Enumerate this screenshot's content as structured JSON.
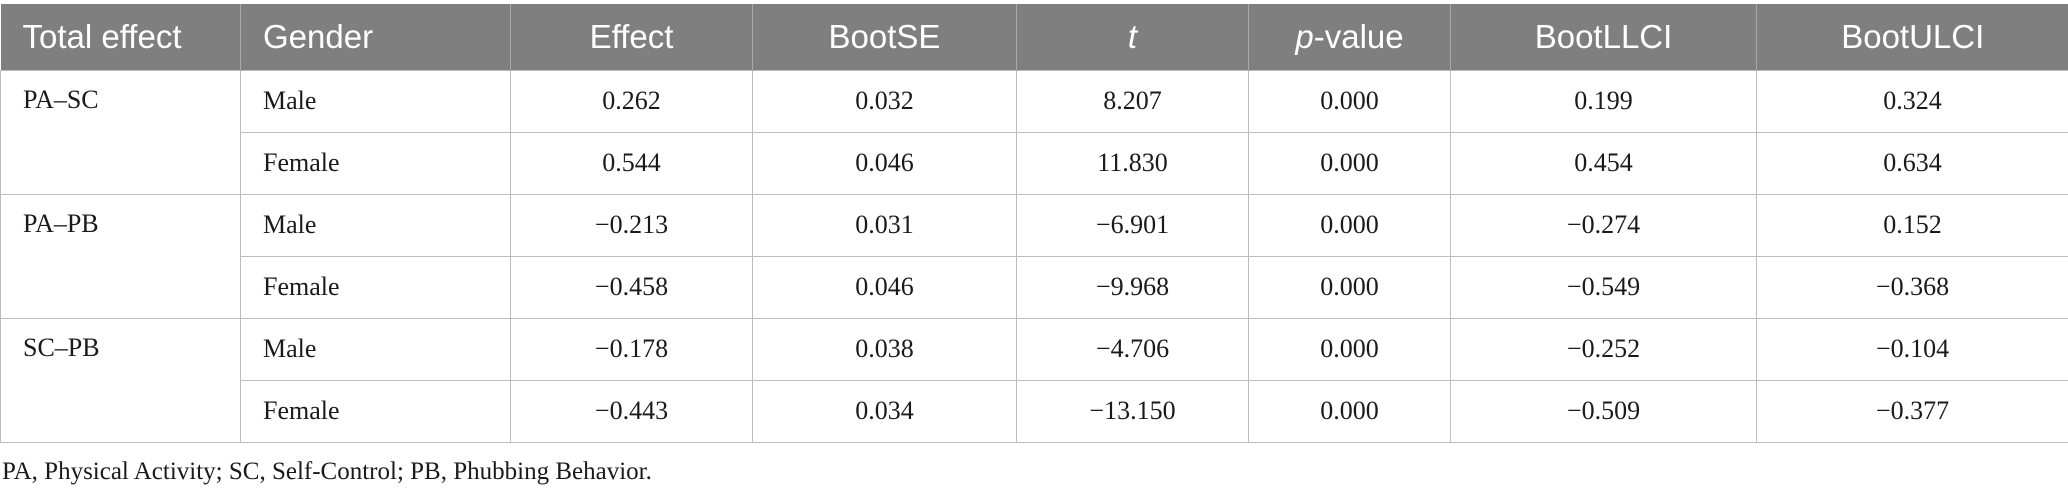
{
  "table": {
    "headers": {
      "total_effect": "Total effect",
      "gender": "Gender",
      "effect": "Effect",
      "bootse": "BootSE",
      "t": "t",
      "p_prefix": "p",
      "p_suffix": "-value",
      "bootllci": "BootLLCI",
      "bootulci": "BootULCI"
    },
    "groups": [
      {
        "label": "PA–SC",
        "rows": [
          {
            "gender": "Male",
            "effect": "0.262",
            "bootse": "0.032",
            "t": "8.207",
            "p": "0.000",
            "llci": "0.199",
            "ulci": "0.324"
          },
          {
            "gender": "Female",
            "effect": "0.544",
            "bootse": "0.046",
            "t": "11.830",
            "p": "0.000",
            "llci": "0.454",
            "ulci": "0.634"
          }
        ]
      },
      {
        "label": "PA–PB",
        "rows": [
          {
            "gender": "Male",
            "effect": "−0.213",
            "bootse": "0.031",
            "t": "−6.901",
            "p": "0.000",
            "llci": "−0.274",
            "ulci": "0.152"
          },
          {
            "gender": "Female",
            "effect": "−0.458",
            "bootse": "0.046",
            "t": "−9.968",
            "p": "0.000",
            "llci": "−0.549",
            "ulci": "−0.368"
          }
        ]
      },
      {
        "label": "SC–PB",
        "rows": [
          {
            "gender": "Male",
            "effect": "−0.178",
            "bootse": "0.038",
            "t": "−4.706",
            "p": "0.000",
            "llci": "−0.252",
            "ulci": "−0.104"
          },
          {
            "gender": "Female",
            "effect": "−0.443",
            "bootse": "0.034",
            "t": "−13.150",
            "p": "0.000",
            "llci": "−0.509",
            "ulci": "−0.377"
          }
        ]
      }
    ]
  },
  "footnote": "PA, Physical Activity; SC, Self-Control; PB, Phubbing Behavior."
}
